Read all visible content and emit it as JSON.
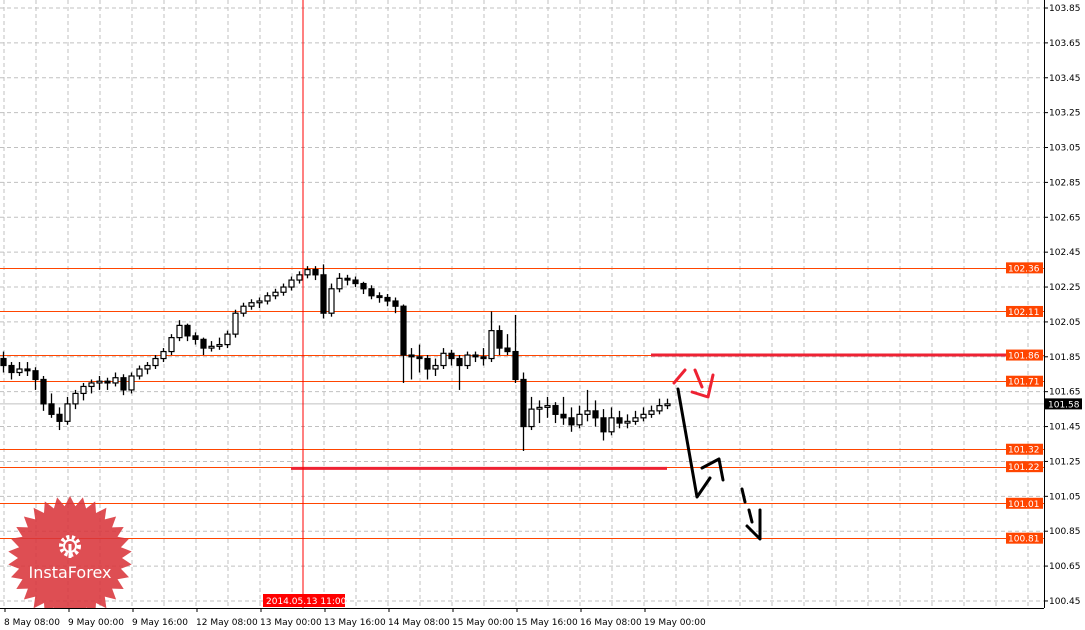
{
  "chart_data": {
    "type": "candlestick",
    "title": "",
    "ylim": [
      100.4,
      103.9
    ],
    "grid": true,
    "y_ticks": [
      "103.85",
      "103.65",
      "103.45",
      "103.25",
      "103.05",
      "102.85",
      "102.65",
      "102.45",
      "102.25",
      "102.05",
      "101.85",
      "101.65",
      "101.45",
      "101.25",
      "101.05",
      "100.85",
      "100.65",
      "100.45"
    ],
    "x_ticks": [
      {
        "label": "8 May 08:00",
        "bar": 0
      },
      {
        "label": "9 May 00:00",
        "bar": 8
      },
      {
        "label": "9 May 16:00",
        "bar": 16
      },
      {
        "label": "12 May 08:00",
        "bar": 24
      },
      {
        "label": "13 May 00:00",
        "bar": 32
      },
      {
        "label": "13 May 16:00",
        "bar": 40
      },
      {
        "label": "14 May 08:00",
        "bar": 48
      },
      {
        "label": "15 May 00:00",
        "bar": 56
      },
      {
        "label": "15 May 16:00",
        "bar": 64
      },
      {
        "label": "16 May 08:00",
        "bar": 72
      },
      {
        "label": "19 May 00:00",
        "bar": 80
      }
    ],
    "candles_ohlc": [
      [
        101.84,
        101.88,
        101.76,
        101.8
      ],
      [
        101.8,
        101.82,
        101.72,
        101.76
      ],
      [
        101.76,
        101.82,
        101.74,
        101.78
      ],
      [
        101.78,
        101.82,
        101.74,
        101.77
      ],
      [
        101.77,
        101.79,
        101.66,
        101.72
      ],
      [
        101.72,
        101.74,
        101.54,
        101.58
      ],
      [
        101.58,
        101.64,
        101.5,
        101.52
      ],
      [
        101.52,
        101.56,
        101.43,
        101.48
      ],
      [
        101.48,
        101.62,
        101.46,
        101.58
      ],
      [
        101.58,
        101.66,
        101.55,
        101.64
      ],
      [
        101.64,
        101.7,
        101.6,
        101.68
      ],
      [
        101.68,
        101.72,
        101.64,
        101.7
      ],
      [
        101.7,
        101.74,
        101.66,
        101.71
      ],
      [
        101.71,
        101.73,
        101.66,
        101.7
      ],
      [
        101.7,
        101.76,
        101.68,
        101.73
      ],
      [
        101.73,
        101.75,
        101.63,
        101.66
      ],
      [
        101.66,
        101.76,
        101.64,
        101.74
      ],
      [
        101.74,
        101.8,
        101.72,
        101.78
      ],
      [
        101.78,
        101.82,
        101.75,
        101.8
      ],
      [
        101.8,
        101.86,
        101.78,
        101.84
      ],
      [
        101.84,
        101.9,
        101.82,
        101.88
      ],
      [
        101.88,
        101.98,
        101.86,
        101.96
      ],
      [
        101.96,
        102.06,
        101.94,
        102.03
      ],
      [
        102.03,
        102.04,
        101.94,
        101.97
      ],
      [
        101.97,
        101.99,
        101.92,
        101.95
      ],
      [
        101.95,
        101.96,
        101.86,
        101.9
      ],
      [
        101.9,
        101.94,
        101.88,
        101.91
      ],
      [
        101.91,
        101.96,
        101.89,
        101.92
      ],
      [
        101.92,
        102.0,
        101.9,
        101.98
      ],
      [
        101.98,
        102.12,
        101.96,
        102.1
      ],
      [
        102.1,
        102.16,
        102.08,
        102.14
      ],
      [
        102.14,
        102.18,
        102.12,
        102.16
      ],
      [
        102.16,
        102.19,
        102.13,
        102.17
      ],
      [
        102.17,
        102.22,
        102.15,
        102.2
      ],
      [
        102.2,
        102.24,
        102.18,
        102.22
      ],
      [
        102.22,
        102.27,
        102.2,
        102.25
      ],
      [
        102.25,
        102.31,
        102.23,
        102.29
      ],
      [
        102.29,
        102.34,
        102.27,
        102.32
      ],
      [
        102.32,
        102.37,
        102.3,
        102.35
      ],
      [
        102.35,
        102.37,
        102.29,
        102.32
      ],
      [
        102.32,
        102.38,
        102.07,
        102.1
      ],
      [
        102.1,
        102.27,
        102.08,
        102.24
      ],
      [
        102.24,
        102.33,
        102.22,
        102.3
      ],
      [
        102.3,
        102.32,
        102.26,
        102.29
      ],
      [
        102.29,
        102.31,
        102.25,
        102.27
      ],
      [
        102.27,
        102.28,
        102.21,
        102.24
      ],
      [
        102.24,
        102.26,
        102.18,
        102.2
      ],
      [
        102.2,
        102.22,
        102.16,
        102.19
      ],
      [
        102.19,
        102.21,
        102.14,
        102.17
      ],
      [
        102.17,
        102.19,
        102.1,
        102.14
      ],
      [
        102.14,
        102.15,
        101.7,
        101.86
      ],
      [
        101.86,
        101.9,
        101.72,
        101.85
      ],
      [
        101.85,
        101.92,
        101.76,
        101.84
      ],
      [
        101.84,
        101.86,
        101.72,
        101.78
      ],
      [
        101.78,
        101.84,
        101.74,
        101.8
      ],
      [
        101.8,
        101.9,
        101.78,
        101.87
      ],
      [
        101.87,
        101.89,
        101.8,
        101.84
      ],
      [
        101.84,
        101.86,
        101.66,
        101.8
      ],
      [
        101.8,
        101.88,
        101.78,
        101.86
      ],
      [
        101.86,
        101.88,
        101.82,
        101.85
      ],
      [
        101.85,
        101.9,
        101.8,
        101.84
      ],
      [
        101.84,
        102.11,
        101.82,
        102.0
      ],
      [
        102.0,
        102.03,
        101.86,
        101.9
      ],
      [
        101.9,
        101.98,
        101.86,
        101.88
      ],
      [
        101.88,
        102.09,
        101.7,
        101.72
      ],
      [
        101.72,
        101.76,
        101.31,
        101.45
      ],
      [
        101.45,
        101.62,
        101.43,
        101.55
      ],
      [
        101.55,
        101.6,
        101.47,
        101.56
      ],
      [
        101.56,
        101.62,
        101.5,
        101.57
      ],
      [
        101.57,
        101.59,
        101.47,
        101.52
      ],
      [
        101.52,
        101.62,
        101.46,
        101.5
      ],
      [
        101.5,
        101.56,
        101.42,
        101.46
      ],
      [
        101.46,
        101.57,
        101.44,
        101.52
      ],
      [
        101.52,
        101.66,
        101.48,
        101.54
      ],
      [
        101.54,
        101.6,
        101.45,
        101.5
      ],
      [
        101.5,
        101.55,
        101.37,
        101.42
      ],
      [
        101.42,
        101.56,
        101.4,
        101.5
      ],
      [
        101.5,
        101.54,
        101.44,
        101.47
      ],
      [
        101.47,
        101.52,
        101.44,
        101.48
      ],
      [
        101.48,
        101.54,
        101.46,
        101.5
      ],
      [
        101.5,
        101.56,
        101.48,
        101.52
      ],
      [
        101.52,
        101.57,
        101.5,
        101.54
      ],
      [
        101.54,
        101.61,
        101.52,
        101.57
      ],
      [
        101.57,
        101.61,
        101.55,
        101.58
      ]
    ],
    "levels": [
      {
        "label": "102.36",
        "value": 102.36
      },
      {
        "label": "102.11",
        "value": 102.11
      },
      {
        "label": "101.86",
        "value": 101.86
      },
      {
        "label": "101.71",
        "value": 101.71
      },
      {
        "label": "101.32",
        "value": 101.32
      },
      {
        "label": "101.22",
        "value": 101.22
      },
      {
        "label": "101.01",
        "value": 101.01
      },
      {
        "label": "100.81",
        "value": 100.81
      }
    ],
    "current_price": {
      "label": "101.58",
      "value": 101.58
    },
    "crosshair": {
      "label": "2014.05.13 11:00",
      "bar": 37.5
    },
    "red_segments": [
      {
        "value": 101.86,
        "from_bar": 81,
        "to_bar": 127
      },
      {
        "value": 101.21,
        "from_bar": 36,
        "to_bar": 83
      }
    ]
  },
  "colors": {
    "level": "#ff4500",
    "crosshair": "#ff0000",
    "segment": "#ee2233",
    "grid": "#c0c0c0",
    "current_line": "#c0c0c0",
    "logo": "#d9363b"
  },
  "logo": {
    "text": "InstaForex"
  }
}
